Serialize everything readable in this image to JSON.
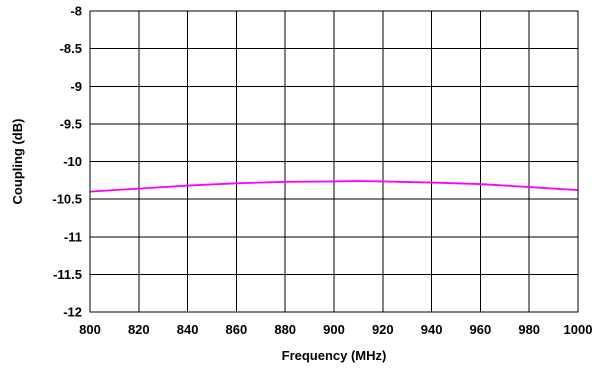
{
  "chart_data": {
    "type": "line",
    "title": "",
    "xlabel": "Frequency (MHz)",
    "ylabel": "Coupling (dB)",
    "xlim": [
      800,
      1000
    ],
    "ylim": [
      -12,
      -8
    ],
    "x_ticks": [
      800,
      820,
      840,
      860,
      880,
      900,
      920,
      940,
      960,
      980,
      1000
    ],
    "x_tick_labels": [
      "800",
      "820",
      "840",
      "860",
      "880",
      "900",
      "920",
      "940",
      "960",
      "980",
      "1000"
    ],
    "y_ticks": [
      -8,
      -8.5,
      -9,
      -9.5,
      -10,
      -10.5,
      -11,
      -11.5,
      -12
    ],
    "y_tick_labels": [
      "-8",
      "-8.5",
      "-9",
      "-9.5",
      "-10",
      "-10.5",
      "-11",
      "-11.5",
      "-12"
    ],
    "grid": true,
    "series": [
      {
        "color": "#ff00ff",
        "x": [
          800,
          820,
          840,
          860,
          880,
          900,
          910,
          920,
          940,
          960,
          980,
          1000
        ],
        "y": [
          -10.4,
          -10.36,
          -10.32,
          -10.29,
          -10.27,
          -10.265,
          -10.26,
          -10.265,
          -10.28,
          -10.3,
          -10.34,
          -10.38
        ]
      }
    ]
  }
}
